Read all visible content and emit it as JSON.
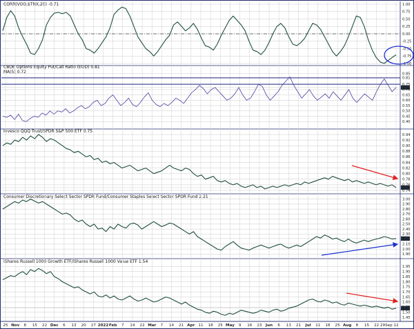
{
  "chart_data": [
    {
      "type": "line",
      "title": "CORR(VOO,$TNX,20) -0.71",
      "ylim": [
        -1.0,
        1.0
      ],
      "yticks": [
        "1.00",
        "0.75",
        "0.50",
        "0.25",
        "0.00",
        "-0.25",
        "-0.50",
        "-0.75",
        "-1.00"
      ],
      "yticks_values": [
        1.0,
        0.75,
        0.5,
        0.25,
        0.0,
        -0.25,
        -0.5,
        -0.75,
        -1.0
      ],
      "zero_line": 0.0,
      "last_value_label": "-0.71",
      "series": [
        {
          "color": "#1f4e3d",
          "values": [
            0.1,
            0.55,
            0.78,
            0.6,
            0.2,
            -0.1,
            -0.35,
            -0.65,
            -0.7,
            -0.5,
            -0.2,
            0.3,
            0.55,
            0.7,
            0.72,
            0.68,
            0.72,
            0.6,
            0.3,
            0.0,
            -0.2,
            -0.5,
            -0.55,
            -0.65,
            -0.5,
            -0.3,
            -0.1,
            0.2,
            0.65,
            0.8,
            0.9,
            0.85,
            0.6,
            0.25,
            -0.1,
            -0.3,
            -0.5,
            -0.6,
            -0.75,
            -0.6,
            -0.4,
            -0.2,
            -0.05,
            0.3,
            0.4,
            0.25,
            0.1,
            0.2,
            0.35,
            0.15,
            -0.15,
            -0.4,
            -0.45,
            -0.55,
            -0.35,
            -0.05,
            0.2,
            0.45,
            0.6,
            0.45,
            0.3,
            0.1,
            -0.25,
            -0.55,
            -0.6,
            -0.7,
            -0.55,
            -0.3,
            0.0,
            0.25,
            0.35,
            0.2,
            -0.1,
            -0.35,
            -0.4,
            -0.3,
            -0.15,
            0.1,
            0.35,
            0.3,
            0.15,
            -0.1,
            -0.35,
            -0.6,
            -0.75,
            -0.6,
            -0.4,
            -0.1,
            0.25,
            0.6,
            0.55,
            0.25,
            -0.2,
            -0.55,
            -0.8,
            -0.95,
            -1.0,
            -0.9,
            -0.8,
            -0.71
          ]
        }
      ]
    },
    {
      "type": "line",
      "title": "CBOE Options Equity Put/Call Ratio (EOD) 0.81",
      "title2": "MA(5) 0.72",
      "ylim": [
        0.35,
        0.9
      ],
      "yticks": [
        "0.85",
        "0.81",
        "0.75",
        "0.72",
        "0.70",
        "0.65",
        "0.60",
        "0.55",
        "0.50",
        "0.45",
        "0.40"
      ],
      "yticks_values": [
        0.85,
        0.81,
        0.75,
        0.72,
        0.7,
        0.65,
        0.6,
        0.55,
        0.5,
        0.45,
        0.4
      ],
      "hlines": [
        0.81,
        0.75
      ],
      "last_value_label": "0.72",
      "series": [
        {
          "name": "MA(5)",
          "color": "#4b3fa0",
          "values": [
            0.45,
            0.44,
            0.46,
            0.42,
            0.47,
            0.41,
            0.4,
            0.43,
            0.45,
            0.44,
            0.48,
            0.46,
            0.5,
            0.47,
            0.5,
            0.49,
            0.52,
            0.48,
            0.5,
            0.53,
            0.55,
            0.52,
            0.54,
            0.58,
            0.6,
            0.55,
            0.57,
            0.62,
            0.65,
            0.6,
            0.55,
            0.58,
            0.62,
            0.56,
            0.54,
            0.58,
            0.63,
            0.67,
            0.6,
            0.56,
            0.54,
            0.57,
            0.55,
            0.58,
            0.62,
            0.6,
            0.57,
            0.62,
            0.67,
            0.7,
            0.74,
            0.71,
            0.66,
            0.7,
            0.72,
            0.68,
            0.64,
            0.6,
            0.62,
            0.66,
            0.72,
            0.65,
            0.6,
            0.62,
            0.68,
            0.75,
            0.73,
            0.65,
            0.6,
            0.64,
            0.68,
            0.74,
            0.78,
            0.82,
            0.74,
            0.68,
            0.62,
            0.66,
            0.7,
            0.64,
            0.6,
            0.63,
            0.66,
            0.62,
            0.68,
            0.64,
            0.6,
            0.65,
            0.7,
            0.62,
            0.58,
            0.62,
            0.66,
            0.63,
            0.6,
            0.68,
            0.75,
            0.8,
            0.74,
            0.68,
            0.72
          ]
        }
      ]
    },
    {
      "type": "line",
      "title": "Invesco QQQ Trust/SPDR S&P 500 ETF 0.75",
      "ylim": [
        0.735,
        0.95
      ],
      "yticks": [
        "0.94",
        "0.92",
        "0.90",
        "0.88",
        "0.86",
        "0.84",
        "0.82",
        "0.80",
        "0.78",
        "0.76",
        "0.75",
        "0.74"
      ],
      "yticks_values": [
        0.94,
        0.92,
        0.9,
        0.88,
        0.86,
        0.84,
        0.82,
        0.8,
        0.78,
        0.76,
        0.75,
        0.74
      ],
      "last_value_label": "0.75",
      "series": [
        {
          "color": "#1f4e3d",
          "values": [
            0.9,
            0.91,
            0.905,
            0.92,
            0.915,
            0.93,
            0.92,
            0.935,
            0.925,
            0.94,
            0.93,
            0.915,
            0.925,
            0.92,
            0.91,
            0.9,
            0.89,
            0.885,
            0.875,
            0.88,
            0.87,
            0.86,
            0.865,
            0.85,
            0.855,
            0.84,
            0.845,
            0.835,
            0.84,
            0.83,
            0.82,
            0.825,
            0.83,
            0.82,
            0.81,
            0.815,
            0.82,
            0.81,
            0.8,
            0.805,
            0.81,
            0.82,
            0.83,
            0.82,
            0.815,
            0.81,
            0.82,
            0.815,
            0.8,
            0.79,
            0.795,
            0.78,
            0.785,
            0.79,
            0.775,
            0.77,
            0.775,
            0.765,
            0.76,
            0.765,
            0.755,
            0.75,
            0.755,
            0.76,
            0.75,
            0.755,
            0.745,
            0.75,
            0.755,
            0.75,
            0.755,
            0.76,
            0.755,
            0.76,
            0.765,
            0.76,
            0.77,
            0.765,
            0.77,
            0.775,
            0.78,
            0.785,
            0.78,
            0.79,
            0.785,
            0.78,
            0.775,
            0.78,
            0.77,
            0.775,
            0.77,
            0.765,
            0.77,
            0.765,
            0.76,
            0.765,
            0.76,
            0.755,
            0.76,
            0.75
          ]
        }
      ]
    },
    {
      "type": "line",
      "title": "Consumer Discretionary Select Sector SPDR Fund/Consumer Staples Select Sector SPDR Fund 2.21",
      "ylim": [
        1.85,
        3.05
      ],
      "yticks": [
        "3.00",
        "2.90",
        "2.80",
        "2.70",
        "2.60",
        "2.50",
        "2.40",
        "2.30",
        "2.21",
        "2.10",
        "2.00",
        "1.90"
      ],
      "yticks_values": [
        3.0,
        2.9,
        2.8,
        2.7,
        2.6,
        2.5,
        2.4,
        2.3,
        2.21,
        2.1,
        2.0,
        1.9
      ],
      "last_value_label": "2.21",
      "series": [
        {
          "color": "#1f4e3d",
          "values": [
            2.8,
            2.85,
            2.9,
            2.95,
            2.92,
            2.98,
            2.95,
            3.0,
            2.96,
            2.92,
            2.95,
            2.9,
            2.85,
            2.8,
            2.75,
            2.7,
            2.72,
            2.68,
            2.6,
            2.55,
            2.58,
            2.5,
            2.45,
            2.5,
            2.4,
            2.42,
            2.35,
            2.45,
            2.4,
            2.5,
            2.45,
            2.42,
            2.5,
            2.52,
            2.48,
            2.4,
            2.45,
            2.5,
            2.55,
            2.5,
            2.45,
            2.48,
            2.52,
            2.5,
            2.45,
            2.4,
            2.35,
            2.3,
            2.35,
            2.25,
            2.2,
            2.15,
            2.1,
            2.05,
            2.0,
            1.98,
            2.05,
            2.1,
            2.15,
            2.08,
            2.02,
            2.0,
            1.98,
            2.02,
            2.05,
            2.08,
            2.05,
            2.02,
            2.05,
            2.08,
            2.1,
            2.05,
            2.02,
            2.05,
            2.08,
            2.05,
            2.1,
            2.15,
            2.2,
            2.25,
            2.22,
            2.28,
            2.25,
            2.2,
            2.22,
            2.18,
            2.15,
            2.2,
            2.15,
            2.12,
            2.15,
            2.18,
            2.15,
            2.18,
            2.2,
            2.22,
            2.25,
            2.23,
            2.2,
            2.21
          ]
        }
      ]
    },
    {
      "type": "line",
      "title": "iShares Russell 1000 Growth ETF/iShares Russell 1000 Value ETF 1.54",
      "ylim": [
        1.43,
        2.0
      ],
      "yticks": [
        "1.95",
        "1.90",
        "1.85",
        "1.80",
        "1.75",
        "1.70",
        "1.65",
        "1.60",
        "1.55",
        "1.54",
        "1.50",
        "1.45"
      ],
      "yticks_values": [
        1.95,
        1.9,
        1.85,
        1.8,
        1.75,
        1.7,
        1.65,
        1.6,
        1.55,
        1.54,
        1.5,
        1.45
      ],
      "last_value_label": "1.54",
      "series": [
        {
          "color": "#1f4e3d",
          "values": [
            1.82,
            1.84,
            1.86,
            1.85,
            1.88,
            1.9,
            1.87,
            1.92,
            1.9,
            1.93,
            1.91,
            1.88,
            1.9,
            1.85,
            1.83,
            1.8,
            1.78,
            1.76,
            1.74,
            1.75,
            1.72,
            1.7,
            1.68,
            1.7,
            1.66,
            1.65,
            1.67,
            1.64,
            1.66,
            1.63,
            1.62,
            1.64,
            1.66,
            1.63,
            1.61,
            1.62,
            1.64,
            1.62,
            1.6,
            1.61,
            1.63,
            1.65,
            1.64,
            1.62,
            1.6,
            1.58,
            1.6,
            1.57,
            1.55,
            1.53,
            1.52,
            1.5,
            1.49,
            1.51,
            1.5,
            1.48,
            1.47,
            1.49,
            1.48,
            1.5,
            1.52,
            1.51,
            1.5,
            1.49,
            1.5,
            1.52,
            1.51,
            1.5,
            1.52,
            1.53,
            1.51,
            1.52,
            1.54,
            1.55,
            1.56,
            1.58,
            1.6,
            1.62,
            1.63,
            1.61,
            1.6,
            1.62,
            1.61,
            1.59,
            1.6,
            1.58,
            1.57,
            1.59,
            1.58,
            1.57,
            1.56,
            1.57,
            1.56,
            1.55,
            1.56,
            1.55,
            1.54,
            1.55,
            1.53,
            1.54
          ]
        }
      ]
    }
  ],
  "x_axis": {
    "labels": [
      "25",
      "Nov",
      "8",
      "15",
      "22",
      "Dec",
      "6",
      "13",
      "20",
      "27",
      "2022",
      "Feb",
      "7",
      "14",
      "22",
      "Mar",
      "7",
      "14",
      "21",
      "Apr",
      "11",
      "18",
      "25",
      "May",
      "9",
      "16",
      "23",
      "Jun",
      "6",
      "13",
      "21",
      "Jul",
      "11",
      "18",
      "25",
      "Aug",
      "8",
      "15",
      "22",
      "29Sep",
      "12"
    ],
    "bold": [
      "Nov",
      "Dec",
      "2022",
      "Feb",
      "Mar",
      "Apr",
      "May",
      "Jun",
      "Jul",
      "Aug"
    ]
  },
  "annotations": {
    "red_arrow_color": "#e02020",
    "blue_arrow_color": "#1a2fd0",
    "ellipse_color": "#1a2fd0"
  },
  "colors": {
    "border": "#1f2a6b",
    "price_line": "#1f4e3d",
    "ma_line": "#4b3fa0",
    "hline": "#1a237e",
    "label_fill": "#ffffff"
  }
}
